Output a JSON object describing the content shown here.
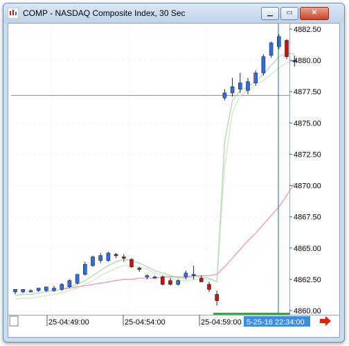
{
  "window": {
    "title": "COMP - NASDAQ Composite Index, 30 Sec",
    "minimize_glyph": "▁",
    "maximize_glyph": "▭",
    "close_glyph": "✕"
  },
  "chart_data": {
    "type": "candlestick",
    "ylim": [
      4859.5,
      4883.0
    ],
    "y_ticks": [
      "4882.50",
      "4880.00",
      "4877.50",
      "4875.00",
      "4872.50",
      "4870.00",
      "4867.50",
      "4865.00",
      "4862.50",
      "4860.00"
    ],
    "y_tick_values": [
      4882.5,
      4880,
      4877.5,
      4875,
      4872.5,
      4870,
      4867.5,
      4865,
      4862.5,
      4860
    ],
    "x_ticks": [
      "25-04:49:00",
      "25-04:54:00",
      "25-04:59:00"
    ],
    "cursor_time_label": "5-25-16 22:34:00",
    "reference_line_value": 4877.2,
    "candles": [
      {
        "o": 4861.5,
        "h": 4861.7,
        "l": 4861.3,
        "c": 4861.7
      },
      {
        "o": 4861.5,
        "h": 4861.7,
        "l": 4861.4,
        "c": 4861.7
      },
      {
        "o": 4861.6,
        "h": 4861.7,
        "l": 4861.6,
        "c": 4861.6
      },
      {
        "o": 4861.6,
        "h": 4861.8,
        "l": 4861.5,
        "c": 4861.8
      },
      {
        "o": 4861.6,
        "h": 4861.9,
        "l": 4861.5,
        "c": 4861.9
      },
      {
        "o": 4861.6,
        "h": 4862.0,
        "l": 4861.5,
        "c": 4861.8
      },
      {
        "o": 4861.7,
        "h": 4862.2,
        "l": 4861.6,
        "c": 4862.1
      },
      {
        "o": 4861.9,
        "h": 4862.5,
        "l": 4861.8,
        "c": 4862.4
      },
      {
        "o": 4862.2,
        "h": 4862.9,
        "l": 4862.1,
        "c": 4862.9
      },
      {
        "o": 4862.9,
        "h": 4863.9,
        "l": 4862.8,
        "c": 4863.7
      },
      {
        "o": 4863.6,
        "h": 4864.4,
        "l": 4863.5,
        "c": 4864.3
      },
      {
        "o": 4864.0,
        "h": 4864.6,
        "l": 4863.8,
        "c": 4864.4
      },
      {
        "o": 4864.0,
        "h": 4864.7,
        "l": 4863.9,
        "c": 4864.6
      },
      {
        "o": 4864.5,
        "h": 4864.6,
        "l": 4864.2,
        "c": 4864.4
      },
      {
        "o": 4864.3,
        "h": 4864.5,
        "l": 4863.9,
        "c": 4864.2
      },
      {
        "o": 4864.1,
        "h": 4864.2,
        "l": 4863.4,
        "c": 4863.5
      },
      {
        "o": 4863.4,
        "h": 4863.5,
        "l": 4863.1,
        "c": 4863.3
      },
      {
        "o": 4862.7,
        "h": 4862.9,
        "l": 4862.5,
        "c": 4862.8
      },
      {
        "o": 4862.7,
        "h": 4862.8,
        "l": 4862.6,
        "c": 4862.7
      },
      {
        "o": 4862.7,
        "h": 4862.8,
        "l": 4862.0,
        "c": 4862.1
      },
      {
        "o": 4862.4,
        "h": 4862.6,
        "l": 4862.0,
        "c": 4862.1
      },
      {
        "o": 4862.1,
        "h": 4862.5,
        "l": 4862.0,
        "c": 4862.4
      },
      {
        "o": 4862.7,
        "h": 4863.2,
        "l": 4862.5,
        "c": 4863.0
      },
      {
        "o": 4862.9,
        "h": 4863.6,
        "l": 4862.5,
        "c": 4862.9
      },
      {
        "o": 4862.6,
        "h": 4862.8,
        "l": 4862.3,
        "c": 4862.3
      },
      {
        "o": 4862.1,
        "h": 4862.3,
        "l": 4861.5,
        "c": 4861.7
      },
      {
        "o": 4861.3,
        "h": 4861.6,
        "l": 4860.4,
        "c": 4860.8
      },
      {
        "o": 4877.0,
        "h": 4877.7,
        "l": 4876.8,
        "c": 4877.4
      },
      {
        "o": 4877.4,
        "h": 4878.6,
        "l": 4877.1,
        "c": 4877.9
      },
      {
        "o": 4877.7,
        "h": 4879.0,
        "l": 4877.4,
        "c": 4878.2
      },
      {
        "o": 4877.6,
        "h": 4878.6,
        "l": 4877.3,
        "c": 4878.3
      },
      {
        "o": 4878.2,
        "h": 4879.2,
        "l": 4878.0,
        "c": 4879.0
      },
      {
        "o": 4879.0,
        "h": 4880.5,
        "l": 4878.8,
        "c": 4880.3
      },
      {
        "o": 4880.4,
        "h": 4881.5,
        "l": 4880.2,
        "c": 4881.4
      },
      {
        "o": 4881.1,
        "h": 4882.1,
        "l": 4880.9,
        "c": 4881.9
      },
      {
        "o": 4881.6,
        "h": 4881.7,
        "l": 4880.1,
        "c": 4880.3
      },
      {
        "o": 4880.0,
        "h": 4880.4,
        "l": 4879.5,
        "c": 4880.0
      }
    ],
    "ma_fast": [
      4861.2,
      4861.3,
      4861.3,
      4861.4,
      4861.5,
      4861.6,
      4861.7,
      4861.9,
      4862.1,
      4862.4,
      4862.8,
      4863.2,
      4863.6,
      4863.9,
      4864.1,
      4864.0,
      4863.8,
      4863.5,
      4863.2,
      4863.0,
      4862.8,
      4862.6,
      4862.6,
      4862.7,
      4862.7,
      4862.6,
      4862.3,
      4873.5,
      4876.8,
      4877.6,
      4877.9,
      4878.3,
      4878.9,
      4879.6,
      4880.3,
      4880.6,
      4880.5
    ],
    "ma_slow": [
      4860.9,
      4861.0,
      4861.0,
      4861.1,
      4861.2,
      4861.3,
      4861.4,
      4861.6,
      4861.8,
      4862.1,
      4862.4,
      4862.8,
      4863.1,
      4863.4,
      4863.6,
      4863.6,
      4863.5,
      4863.3,
      4863.0,
      4862.8,
      4862.6,
      4862.4,
      4862.4,
      4862.5,
      4862.5,
      4862.5,
      4862.3,
      4871.5,
      4875.8,
      4877.2,
      4877.6,
      4878.0,
      4878.4,
      4878.9,
      4879.4,
      4879.8,
      4880.0
    ],
    "ma_long": [
      null,
      null,
      null,
      null,
      null,
      null,
      4861.7,
      4861.8,
      4861.9,
      4862.0,
      4862.1,
      4862.2,
      4862.3,
      4862.4,
      4862.5,
      4862.5,
      4862.6,
      4862.6,
      4862.6,
      4862.7,
      4862.7,
      4862.7,
      4862.7,
      4862.8,
      4862.8,
      4862.8,
      4862.9,
      4863.5,
      4864.2,
      4864.9,
      4865.6,
      4866.2,
      4866.9,
      4867.6,
      4868.3,
      4869.2,
      4870.2
    ],
    "colors": {
      "up": "#2f6fe0",
      "down": "#cc1111",
      "ma_fast": "#b9dcb6",
      "ma_slow": "#d5e8d2",
      "ma_long": "#f08cb8",
      "cursor": "#1a6b8a",
      "axis_highlight": "#3d8ee0"
    }
  }
}
